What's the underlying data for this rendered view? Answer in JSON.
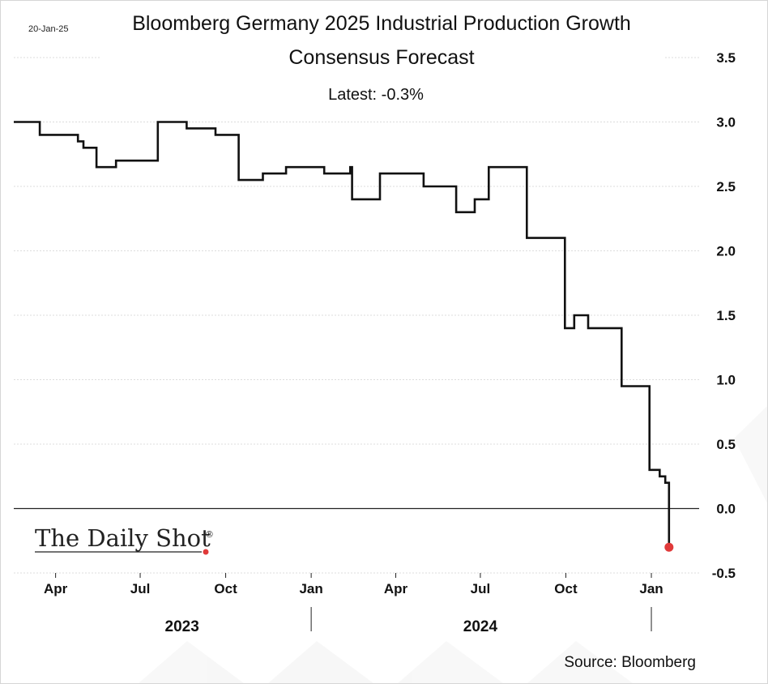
{
  "date_stamp": "20-Jan-25",
  "brand": {
    "logo_text": "The Daily Shot",
    "logo_reg_mark": "®",
    "accent_color": "#e03a3a"
  },
  "source_text": "Source: Bloomberg",
  "chart_data": {
    "type": "line",
    "title": "Bloomberg Germany 2025 Industrial Production Growth",
    "subtitle": "Consensus Forecast",
    "latest_label": "Latest:  -0.3%",
    "xlabel": "",
    "ylabel": "",
    "y_axis_side": "right",
    "ylim": [
      -0.5,
      3.5
    ],
    "yticks": [
      3.5,
      3.0,
      2.5,
      2.0,
      1.5,
      1.0,
      0.5,
      0.0,
      -0.5
    ],
    "ytick_labels": [
      "3.5",
      "3.0",
      "2.5",
      "2.0",
      "1.5",
      "1.0",
      "0.5",
      "0.0",
      "-0.5"
    ],
    "xlim": [
      "2023-02-15",
      "2025-01-28"
    ],
    "xticks": [
      {
        "label": "Apr",
        "date": "2023-04-01"
      },
      {
        "label": "Jul",
        "date": "2023-07-01"
      },
      {
        "label": "Oct",
        "date": "2023-10-01"
      },
      {
        "label": "Jan",
        "date": "2024-01-01"
      },
      {
        "label": "Apr",
        "date": "2024-04-01"
      },
      {
        "label": "Jul",
        "date": "2024-07-01"
      },
      {
        "label": "Oct",
        "date": "2024-10-01"
      },
      {
        "label": "Jan",
        "date": "2025-01-01"
      }
    ],
    "year_labels": [
      {
        "label": "2023",
        "date": "2023-08-15"
      },
      {
        "label": "2024",
        "date": "2024-07-01"
      }
    ],
    "year_dividers": [
      "2024-01-01",
      "2025-01-01"
    ],
    "grid": true,
    "zero_line": true,
    "series": [
      {
        "color": "#111111",
        "step": true,
        "points": [
          [
            "2023-02-15",
            3.0
          ],
          [
            "2023-03-15",
            2.9
          ],
          [
            "2023-04-25",
            2.85
          ],
          [
            "2023-05-01",
            2.8
          ],
          [
            "2023-05-15",
            2.65
          ],
          [
            "2023-06-05",
            2.7
          ],
          [
            "2023-07-20",
            3.0
          ],
          [
            "2023-08-20",
            2.95
          ],
          [
            "2023-09-20",
            2.9
          ],
          [
            "2023-10-15",
            2.55
          ],
          [
            "2023-11-10",
            2.6
          ],
          [
            "2023-12-05",
            2.65
          ],
          [
            "2024-01-15",
            2.6
          ],
          [
            "2024-02-12",
            2.65
          ],
          [
            "2024-02-14",
            2.4
          ],
          [
            "2024-03-15",
            2.6
          ],
          [
            "2024-05-01",
            2.5
          ],
          [
            "2024-06-05",
            2.3
          ],
          [
            "2024-06-25",
            2.4
          ],
          [
            "2024-07-10",
            2.65
          ],
          [
            "2024-08-20",
            2.1
          ],
          [
            "2024-09-30",
            1.4
          ],
          [
            "2024-10-10",
            1.5
          ],
          [
            "2024-10-25",
            1.4
          ],
          [
            "2024-11-30",
            0.95
          ],
          [
            "2024-12-30",
            0.3
          ],
          [
            "2025-01-10",
            0.25
          ],
          [
            "2025-01-16",
            0.2
          ],
          [
            "2025-01-20",
            -0.3
          ]
        ]
      }
    ],
    "latest_point": {
      "x": "2025-01-20",
      "y": -0.3,
      "color": "#e03a3a"
    }
  }
}
